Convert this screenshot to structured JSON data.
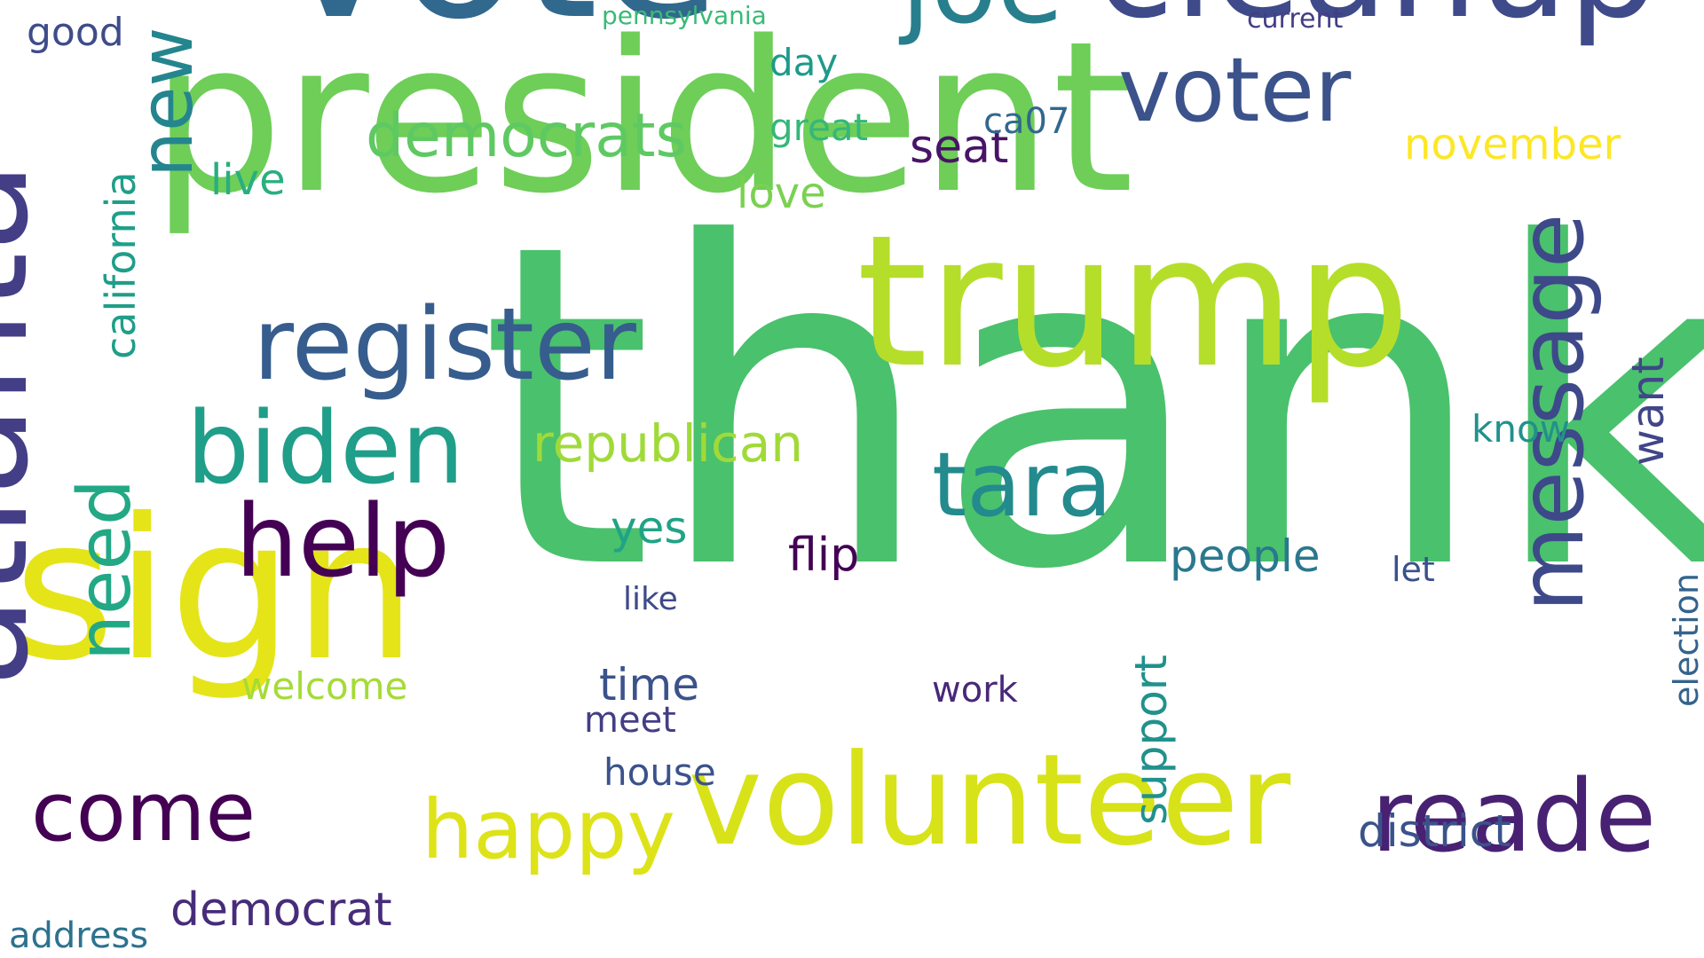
{
  "words": [
    {
      "id": "thank",
      "text": "thank",
      "color": "#4ac16d"
    },
    {
      "id": "president",
      "text": "president",
      "color": "#6ece58"
    },
    {
      "id": "vote",
      "text": "vote",
      "color": "#31688e"
    },
    {
      "id": "trump",
      "text": "trump",
      "color": "#b5de2b"
    },
    {
      "id": "cleanup",
      "text": "cleanup",
      "color": "#3e4a89"
    },
    {
      "id": "sign",
      "text": "sign",
      "color": "#e5e419"
    },
    {
      "id": "atlanta",
      "text": "atlanta",
      "color": "#433e85"
    },
    {
      "id": "volunteer",
      "text": "volunteer",
      "color": "#d8e219"
    },
    {
      "id": "joe",
      "text": "joe",
      "color": "#277f8e"
    },
    {
      "id": "register",
      "text": "register",
      "color": "#365d8d"
    },
    {
      "id": "biden",
      "text": "biden",
      "color": "#1f9e89"
    },
    {
      "id": "help",
      "text": "help",
      "color": "#440154"
    },
    {
      "id": "reade",
      "text": "reade",
      "color": "#482173"
    },
    {
      "id": "voter",
      "text": "voter",
      "color": "#3b528b"
    },
    {
      "id": "message",
      "text": "message",
      "color": "#3e4989"
    },
    {
      "id": "tara",
      "text": "tara",
      "color": "#238a8d"
    },
    {
      "id": "happy",
      "text": "happy",
      "color": "#dde318"
    },
    {
      "id": "come",
      "text": "come",
      "color": "#440154"
    },
    {
      "id": "new",
      "text": "new",
      "color": "#25858e"
    },
    {
      "id": "need",
      "text": "need",
      "color": "#22a884"
    },
    {
      "id": "democrats",
      "text": "democrats",
      "color": "#5ec962"
    },
    {
      "id": "republican",
      "text": "republican",
      "color": "#a0da39"
    },
    {
      "id": "democrat",
      "text": "democrat",
      "color": "#472c7a"
    },
    {
      "id": "district",
      "text": "district",
      "color": "#3b528b"
    },
    {
      "id": "california",
      "text": "california",
      "color": "#1f9e89"
    },
    {
      "id": "flip",
      "text": "flip",
      "color": "#440154"
    },
    {
      "id": "people",
      "text": "people",
      "color": "#2a788e"
    },
    {
      "id": "seat",
      "text": "seat",
      "color": "#481467"
    },
    {
      "id": "support",
      "text": "support",
      "color": "#21918c"
    },
    {
      "id": "want",
      "text": "want",
      "color": "#404688"
    },
    {
      "id": "yes",
      "text": "yes",
      "color": "#20a386"
    },
    {
      "id": "november",
      "text": "november",
      "color": "#fde725"
    },
    {
      "id": "time",
      "text": "time",
      "color": "#3b528b"
    },
    {
      "id": "welcome",
      "text": "welcome",
      "color": "#a5db36"
    },
    {
      "id": "love",
      "text": "love",
      "color": "#7ad151"
    },
    {
      "id": "live",
      "text": "live",
      "color": "#29af7f"
    },
    {
      "id": "house",
      "text": "house",
      "color": "#3b528b"
    },
    {
      "id": "address",
      "text": "address",
      "color": "#2c728e"
    },
    {
      "id": "know",
      "text": "know",
      "color": "#21918c"
    },
    {
      "id": "election",
      "text": "election",
      "color": "#33638d"
    },
    {
      "id": "great",
      "text": "great",
      "color": "#35b779"
    },
    {
      "id": "good",
      "text": "good",
      "color": "#3e4c8a"
    },
    {
      "id": "meet",
      "text": "meet",
      "color": "#433e85"
    },
    {
      "id": "work",
      "text": "work",
      "color": "#482878"
    },
    {
      "id": "day",
      "text": "day",
      "color": "#1f9a8a"
    },
    {
      "id": "like",
      "text": "like",
      "color": "#3e4a89"
    },
    {
      "id": "let",
      "text": "let",
      "color": "#3b518b"
    },
    {
      "id": "ca07",
      "text": "ca07",
      "color": "#31688e"
    },
    {
      "id": "current",
      "text": "current",
      "color": "#433e85"
    },
    {
      "id": "pennsylvania",
      "text": "pennsylvania",
      "color": "#3aba76"
    }
  ]
}
